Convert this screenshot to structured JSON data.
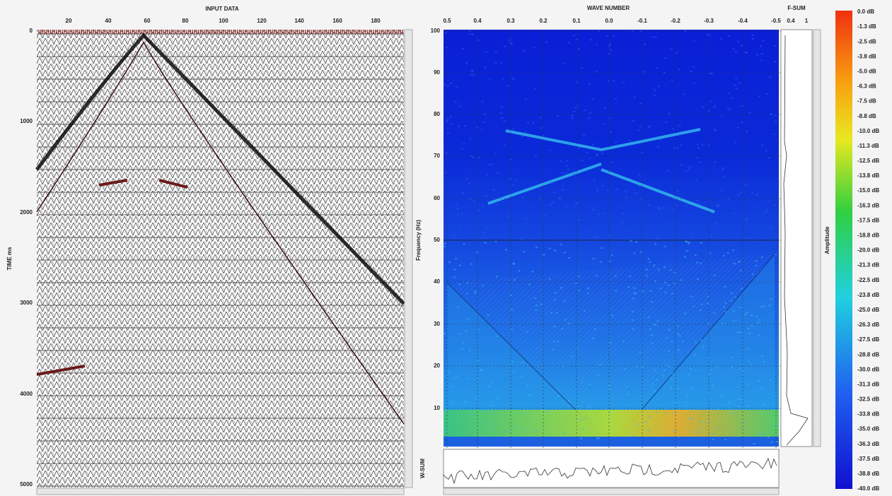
{
  "input_panel": {
    "title": "INPUT DATA",
    "x_ticks": [
      "20",
      "40",
      "60",
      "80",
      "100",
      "120",
      "140",
      "160",
      "180"
    ],
    "y_label": "TIME ms",
    "y_ticks": [
      "0",
      "1000",
      "2000",
      "3000",
      "4000",
      "5000"
    ]
  },
  "spectrum_panel": {
    "title": "WAVE NUMBER",
    "x_ticks": [
      "0.5",
      "0.4",
      "0.3",
      "0.2",
      "0.1",
      "0.0",
      "-0.1",
      "-0.2",
      "-0.3",
      "-0.4",
      "-0.5"
    ],
    "y_label": "Frequency (Hz)",
    "y_ticks": [
      "100",
      "90",
      "80",
      "70",
      "60",
      "50",
      "40",
      "30",
      "20",
      "10"
    ]
  },
  "fsum_panel": {
    "title": "F-SUM",
    "x_ticks": [
      "0.4",
      "1"
    ]
  },
  "wsum_panel": {
    "label": "W-SUM"
  },
  "colorbar": {
    "label": "Amplitude",
    "ticks": [
      "0.0 dB",
      "-1.3 dB",
      "-2.5 dB",
      "-3.8 dB",
      "-5.0 dB",
      "-6.3 dB",
      "-7.5 dB",
      "-8.8 dB",
      "-10.0 dB",
      "-11.3 dB",
      "-12.5 dB",
      "-13.8 dB",
      "-15.0 dB",
      "-16.3 dB",
      "-17.5 dB",
      "-18.8 dB",
      "-20.0 dB",
      "-21.3 dB",
      "-22.5 dB",
      "-23.8 dB",
      "-25.0 dB",
      "-26.3 dB",
      "-27.5 dB",
      "-28.8 dB",
      "-30.0 dB",
      "-31.3 dB",
      "-32.5 dB",
      "-33.8 dB",
      "-35.0 dB",
      "-36.3 dB",
      "-37.5 dB",
      "-38.8 dB",
      "-40.0 dB"
    ]
  }
}
